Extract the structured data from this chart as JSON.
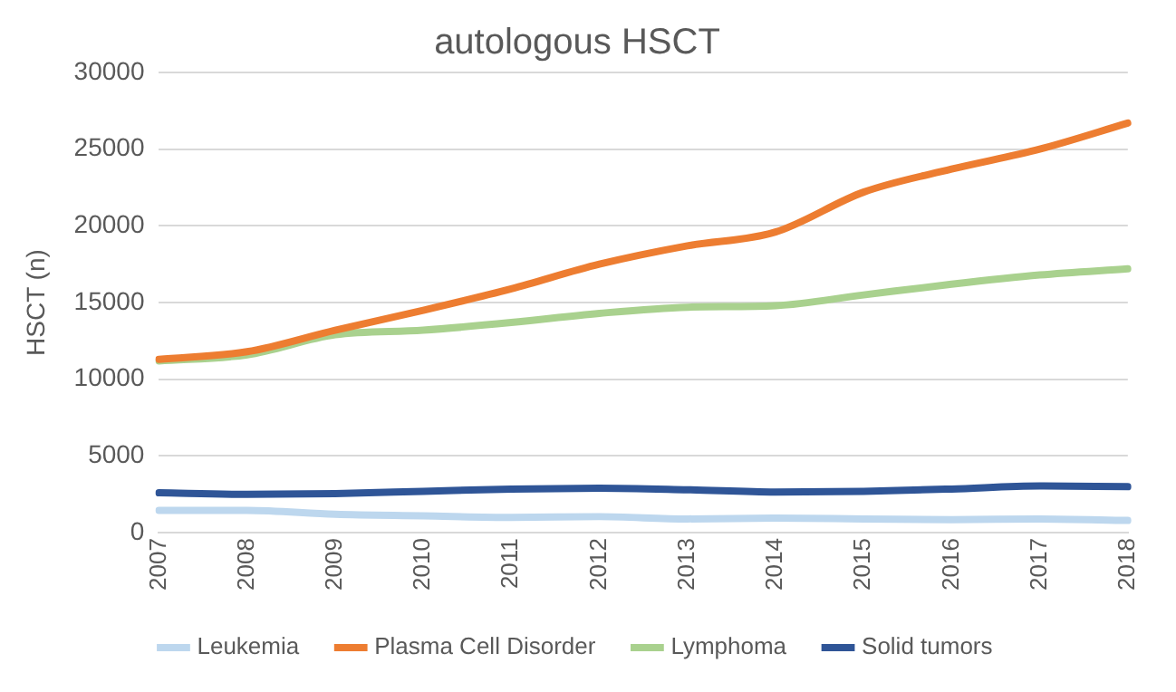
{
  "chart_data": {
    "type": "line",
    "title": "autologous HSCT",
    "ylabel": "HSCT (n)",
    "categories": [
      "2007",
      "2008",
      "2009",
      "2010",
      "2011",
      "2012",
      "2013",
      "2014",
      "2015",
      "2016",
      "2017",
      "2018"
    ],
    "series": [
      {
        "name": "Leukemia",
        "color": "#bdd7ee",
        "values": [
          1450,
          1450,
          1200,
          1100,
          1000,
          1050,
          900,
          950,
          900,
          850,
          900,
          800
        ]
      },
      {
        "name": "Plasma Cell Disorder",
        "color": "#ed7d31",
        "values": [
          11300,
          11800,
          13200,
          14500,
          15900,
          17500,
          18700,
          19600,
          22200,
          23700,
          25000,
          26700
        ]
      },
      {
        "name": "Lymphoma",
        "color": "#a9d18e",
        "values": [
          11200,
          11600,
          12900,
          13200,
          13700,
          14300,
          14700,
          14800,
          15500,
          16200,
          16800,
          17200
        ]
      },
      {
        "name": "Solid tumors",
        "color": "#2f5597",
        "values": [
          2600,
          2500,
          2550,
          2700,
          2850,
          2900,
          2800,
          2650,
          2700,
          2850,
          3050,
          3000
        ]
      }
    ],
    "ylim": [
      0,
      30000
    ],
    "yticks": [
      0,
      5000,
      10000,
      15000,
      20000,
      25000,
      30000
    ],
    "grid": "y",
    "legend": "bottom",
    "marker": "none",
    "line_style": "solid"
  }
}
